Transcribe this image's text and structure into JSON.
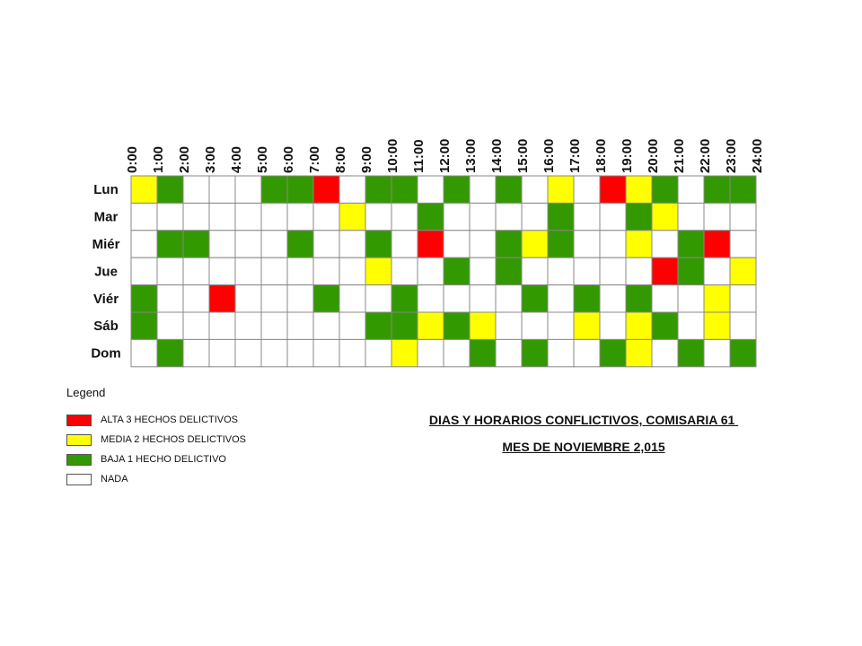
{
  "chart_data": {
    "type": "heatmap",
    "title": "DIAS Y HORARIOS CONFLICTIVOS, COMISARIA 61 ",
    "subtitle": "MES DE NOVIEMBRE 2,015",
    "x_labels": [
      "0:00",
      "1:00",
      "2:00",
      "3:00",
      "4:00",
      "5:00",
      "6:00",
      "7:00",
      "8:00",
      "9:00",
      "10:00",
      "11:00",
      "12:00",
      "13:00",
      "14:00",
      "15:00",
      "16:00",
      "17:00",
      "18:00",
      "19:00",
      "20:00",
      "21:00",
      "22:00",
      "23:00",
      "24:00"
    ],
    "y_labels": [
      "Lun",
      "Mar",
      "Miér",
      "Jue",
      "Viér",
      "Sáb",
      "Dom"
    ],
    "values": [
      [
        2,
        1,
        0,
        0,
        0,
        1,
        1,
        3,
        0,
        1,
        1,
        0,
        1,
        0,
        1,
        0,
        2,
        0,
        3,
        2,
        1,
        0,
        1,
        1
      ],
      [
        0,
        0,
        0,
        0,
        0,
        0,
        0,
        0,
        2,
        0,
        0,
        1,
        0,
        0,
        0,
        0,
        1,
        0,
        0,
        1,
        2,
        0,
        0,
        0
      ],
      [
        0,
        1,
        1,
        0,
        0,
        0,
        1,
        0,
        0,
        1,
        0,
        3,
        0,
        0,
        1,
        2,
        1,
        0,
        0,
        2,
        0,
        1,
        3,
        0
      ],
      [
        0,
        0,
        0,
        0,
        0,
        0,
        0,
        0,
        0,
        2,
        0,
        0,
        1,
        0,
        1,
        0,
        0,
        0,
        0,
        0,
        3,
        1,
        0,
        2
      ],
      [
        1,
        0,
        0,
        3,
        0,
        0,
        0,
        1,
        0,
        0,
        1,
        0,
        0,
        0,
        0,
        1,
        0,
        1,
        0,
        1,
        0,
        0,
        2,
        0
      ],
      [
        1,
        0,
        0,
        0,
        0,
        0,
        0,
        0,
        0,
        1,
        1,
        2,
        1,
        2,
        0,
        0,
        0,
        2,
        0,
        2,
        1,
        0,
        2,
        0
      ],
      [
        0,
        1,
        0,
        0,
        0,
        0,
        0,
        0,
        0,
        0,
        2,
        0,
        0,
        1,
        0,
        1,
        0,
        0,
        1,
        2,
        0,
        1,
        0,
        1
      ]
    ]
  },
  "legend": {
    "title": "Legend",
    "items": [
      {
        "level": 3,
        "label": "ALTA 3 HECHOS DELICTIVOS",
        "color": "#ff0000"
      },
      {
        "level": 2,
        "label": "MEDIA 2 HECHOS DELICTIVOS",
        "color": "#ffff00"
      },
      {
        "level": 1,
        "label": "BAJA 1 HECHO DELICTIVO",
        "color": "#339900"
      },
      {
        "level": 0,
        "label": "NADA",
        "color": "#ffffff"
      }
    ]
  }
}
